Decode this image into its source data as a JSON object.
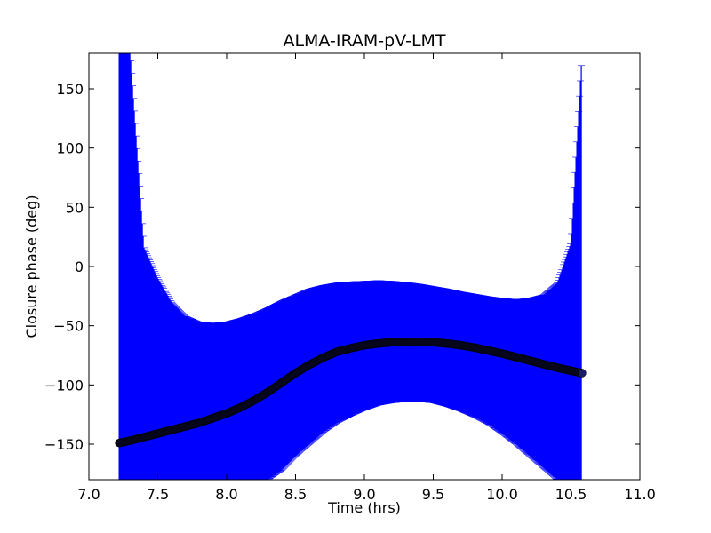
{
  "chart_data": {
    "type": "scatter",
    "title": "ALMA-IRAM-pV-LMT",
    "xlabel": "Time (hrs)",
    "ylabel": "Closure phase (deg)",
    "xlim": [
      7.0,
      11.0
    ],
    "ylim": [
      -180,
      180
    ],
    "x_ticks": [
      7.0,
      7.5,
      8.0,
      8.5,
      9.0,
      9.5,
      10.0,
      10.5,
      11.0
    ],
    "x_tick_labels": [
      "7.0",
      "7.5",
      "8.0",
      "8.5",
      "9.0",
      "9.5",
      "10.0",
      "10.5",
      "11.0"
    ],
    "y_ticks": [
      -150,
      -100,
      -50,
      0,
      50,
      100,
      150
    ],
    "y_tick_labels": [
      "−150",
      "−100",
      "−50",
      "0",
      "50",
      "100",
      "150"
    ],
    "grid": false,
    "series": [
      {
        "marker": "circle",
        "color": "#0a0a28",
        "errorbar_color": "#0000ff",
        "x": [
          7.22,
          7.3,
          7.4,
          7.5,
          7.6,
          7.7,
          7.8,
          7.9,
          8.0,
          8.1,
          8.2,
          8.3,
          8.4,
          8.5,
          8.6,
          8.7,
          8.8,
          8.9,
          9.0,
          9.1,
          9.2,
          9.3,
          9.4,
          9.5,
          9.6,
          9.7,
          9.8,
          9.9,
          10.0,
          10.1,
          10.2,
          10.3,
          10.4,
          10.5,
          10.58
        ],
        "y": [
          -149,
          -147,
          -144,
          -141,
          -138,
          -135,
          -132,
          -128,
          -124,
          -119,
          -113,
          -106,
          -98,
          -90,
          -83,
          -77,
          -72,
          -69,
          -66.5,
          -65,
          -64,
          -63.5,
          -63.5,
          -64,
          -65,
          -66.5,
          -68.5,
          -71,
          -73.5,
          -76.5,
          -79.5,
          -82.5,
          -85.5,
          -88,
          -90
        ],
        "err_upper": [
          180,
          180,
          16,
          -10,
          -30,
          -42,
          -47,
          -48,
          -47,
          -44,
          -40,
          -35,
          -29,
          -24,
          -19,
          -16,
          -14,
          -13,
          -12.5,
          -12,
          -12.5,
          -13.5,
          -15,
          -17,
          -19,
          -21.5,
          -23.5,
          -25.5,
          -27,
          -28,
          -27,
          -24,
          -14,
          20,
          180
        ],
        "err_lower": [
          -180,
          -180,
          -180,
          -180,
          -180,
          -180,
          -180,
          -180,
          -180,
          -180,
          -180,
          -180,
          -172,
          -160,
          -150,
          -140,
          -132,
          -126,
          -121,
          -117,
          -115,
          -114,
          -114,
          -115,
          -118,
          -122,
          -127,
          -133,
          -141,
          -150,
          -160,
          -170,
          -180,
          -180,
          -180
        ]
      }
    ]
  }
}
